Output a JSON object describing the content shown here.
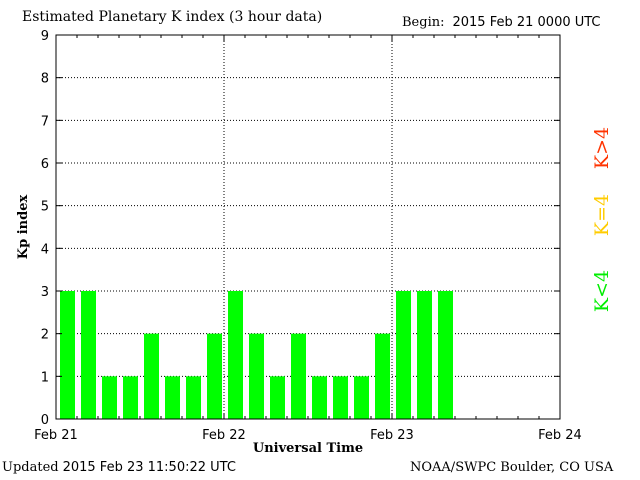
{
  "header": {
    "title": "Estimated Planetary K index (3 hour data)",
    "begin_label": "Begin:",
    "begin_value": "2015 Feb 21 0000 UTC"
  },
  "footer": {
    "updated_label": "Updated",
    "updated_value": "2015 Feb 23 11:50:22 UTC",
    "credit": "NOAA/SWPC Boulder, CO USA"
  },
  "legend": [
    {
      "label": "K>4",
      "color": "#ff3300"
    },
    {
      "label": "K=4",
      "color": "#ffcc00"
    },
    {
      "label": "K<4",
      "color": "#00ee00"
    }
  ],
  "chart_data": {
    "type": "bar",
    "title": "Estimated Planetary K index (3 hour data)",
    "xlabel": "Universal Time",
    "ylabel": "Kp index",
    "ylim": [
      0,
      9
    ],
    "yticks": [
      0,
      1,
      2,
      3,
      4,
      5,
      6,
      7,
      8,
      9
    ],
    "x_tick_labels": [
      "Feb 21",
      "Feb 22",
      "Feb 23",
      "Feb 24"
    ],
    "slots_per_day": 8,
    "total_slots": 24,
    "grid": true,
    "bar_color": "#00ff00",
    "categories": [
      "Feb 21 00-03",
      "Feb 21 03-06",
      "Feb 21 06-09",
      "Feb 21 09-12",
      "Feb 21 12-15",
      "Feb 21 15-18",
      "Feb 21 18-21",
      "Feb 21 21-24",
      "Feb 22 00-03",
      "Feb 22 03-06",
      "Feb 22 06-09",
      "Feb 22 09-12",
      "Feb 22 12-15",
      "Feb 22 15-18",
      "Feb 22 18-21",
      "Feb 22 21-24",
      "Feb 23 00-03",
      "Feb 23 03-06",
      "Feb 23 06-09"
    ],
    "values": [
      3,
      3,
      1,
      1,
      2,
      1,
      1,
      2,
      3,
      2,
      1,
      2,
      1,
      1,
      1,
      2,
      3,
      3,
      3
    ]
  }
}
